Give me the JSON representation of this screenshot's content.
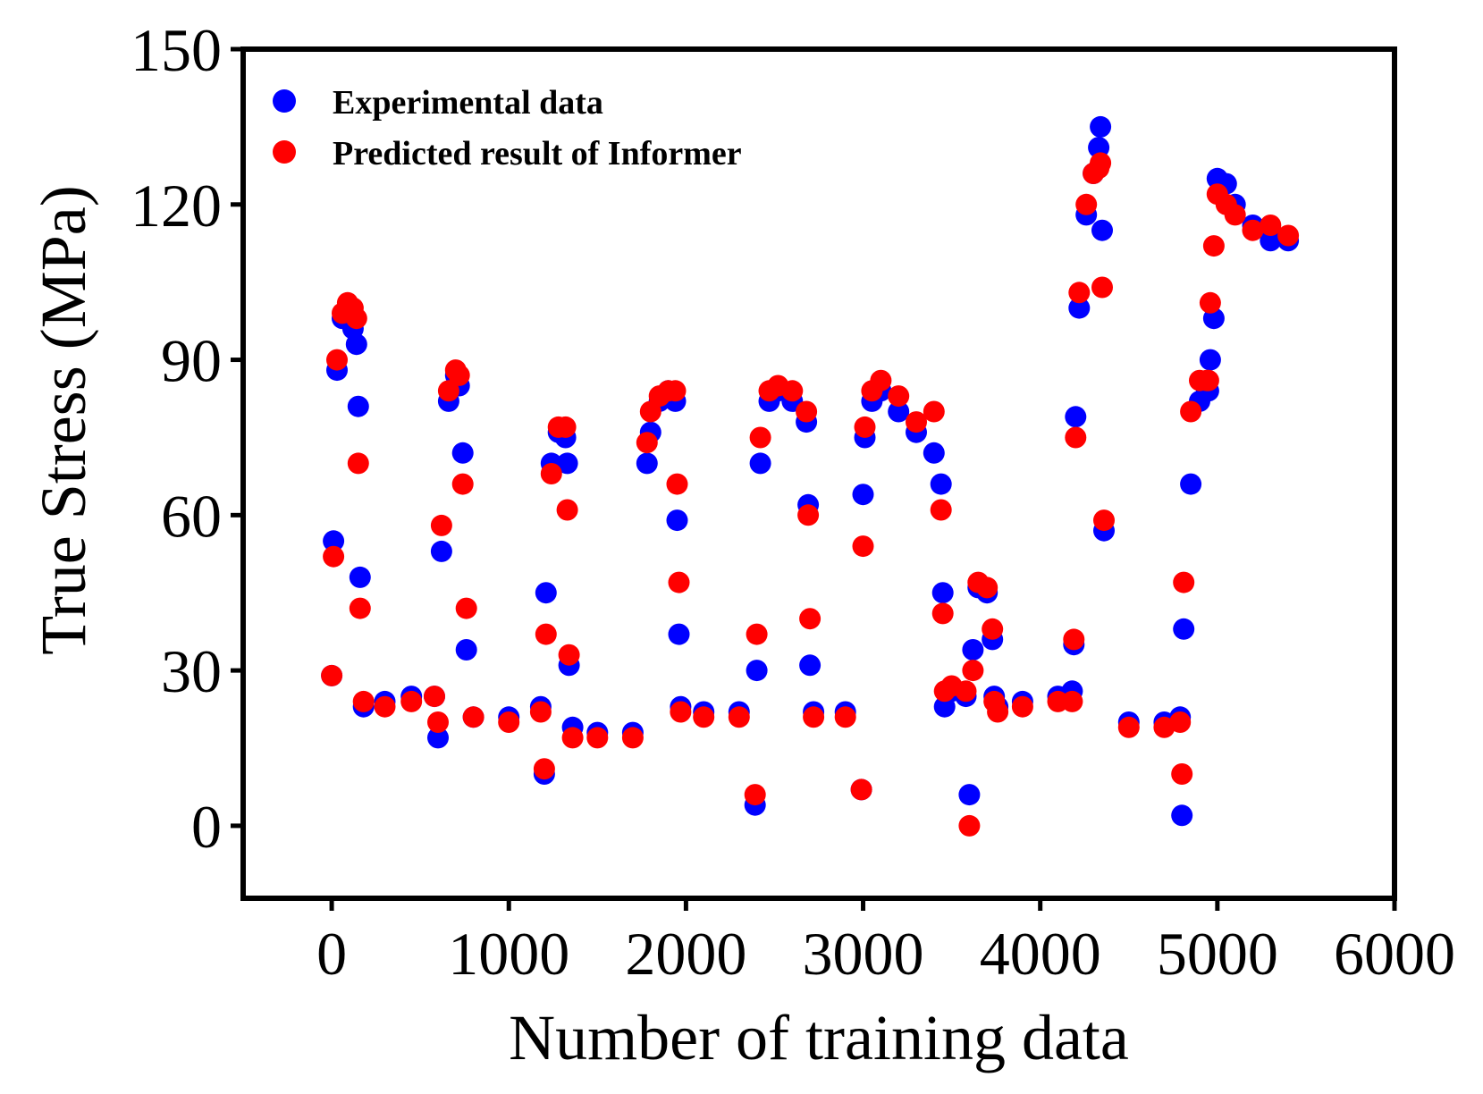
{
  "chart_data": {
    "type": "scatter",
    "title": "",
    "xlabel": "Number of training data",
    "ylabel": "True Stress (MPa)",
    "xlim": [
      -500,
      6000
    ],
    "ylim": [
      -14,
      150
    ],
    "xticks": [
      "0",
      "1000",
      "2000",
      "3000",
      "4000",
      "5000",
      "6000"
    ],
    "yticks": [
      "0",
      "30",
      "60",
      "90",
      "120",
      "150"
    ],
    "legend_position": "top-left",
    "colors": {
      "experimental": "#0000ff",
      "predicted": "#ff0000"
    },
    "series": [
      {
        "name": "Experimental data",
        "color": "#0000ff",
        "x": [
          0,
          10,
          30,
          60,
          90,
          120,
          140,
          150,
          160,
          180,
          300,
          450,
          580,
          600,
          620,
          660,
          700,
          720,
          740,
          760,
          800,
          1000,
          1180,
          1200,
          1210,
          1240,
          1280,
          1320,
          1330,
          1340,
          1360,
          1500,
          1700,
          1780,
          1800,
          1850,
          1900,
          1940,
          1950,
          1960,
          1970,
          2100,
          2300,
          2390,
          2400,
          2420,
          2470,
          2520,
          2600,
          2680,
          2690,
          2700,
          2720,
          2900,
          2990,
          3000,
          3010,
          3050,
          3100,
          3200,
          3300,
          3400,
          3440,
          3450,
          3460,
          3500,
          3580,
          3600,
          3620,
          3650,
          3700,
          3730,
          3740,
          3760,
          3900,
          4100,
          4180,
          4190,
          4200,
          4220,
          4260,
          4300,
          4330,
          4340,
          4350,
          4360,
          4500,
          4700,
          4790,
          4800,
          4810,
          4850,
          4900,
          4940,
          4950,
          4960,
          4980,
          5000,
          5050,
          5100,
          5200,
          5300,
          5400
        ],
        "y": [
          29,
          55,
          88,
          98,
          100,
          96,
          93,
          81,
          48,
          23,
          24,
          25,
          25,
          17,
          53,
          82,
          87,
          85,
          72,
          34,
          21,
          21,
          23,
          10,
          45,
          70,
          76,
          75,
          70,
          31,
          19,
          18,
          18,
          70,
          76,
          82,
          84,
          82,
          59,
          37,
          23,
          22,
          22,
          4,
          30,
          70,
          82,
          84,
          82,
          78,
          62,
          31,
          22,
          22,
          7,
          64,
          75,
          82,
          84,
          80,
          76,
          72,
          66,
          45,
          23,
          26,
          25,
          6,
          34,
          46,
          45,
          36,
          25,
          23,
          24,
          25,
          26,
          35,
          79,
          100,
          118,
          126,
          131,
          135,
          115,
          57,
          20,
          20,
          21,
          2,
          38,
          66,
          82,
          84,
          84,
          90,
          98,
          125,
          124,
          120,
          116,
          113,
          113
        ]
      },
      {
        "name": "Predicted result of Informer",
        "color": "#ff0000",
        "x": [
          0,
          10,
          30,
          60,
          90,
          120,
          140,
          150,
          160,
          180,
          300,
          450,
          580,
          600,
          620,
          660,
          700,
          720,
          740,
          760,
          800,
          1000,
          1180,
          1200,
          1210,
          1240,
          1280,
          1320,
          1330,
          1340,
          1360,
          1500,
          1700,
          1780,
          1800,
          1850,
          1900,
          1940,
          1950,
          1960,
          1970,
          2100,
          2300,
          2390,
          2400,
          2420,
          2470,
          2520,
          2600,
          2680,
          2690,
          2700,
          2720,
          2900,
          2990,
          3000,
          3010,
          3050,
          3100,
          3200,
          3300,
          3400,
          3440,
          3450,
          3460,
          3500,
          3580,
          3600,
          3620,
          3650,
          3700,
          3730,
          3740,
          3760,
          3900,
          4100,
          4180,
          4190,
          4200,
          4220,
          4260,
          4300,
          4330,
          4340,
          4350,
          4360,
          4500,
          4700,
          4790,
          4800,
          4810,
          4850,
          4900,
          4940,
          4950,
          4960,
          4980,
          5000,
          5050,
          5100,
          5200,
          5300,
          5400
        ],
        "y": [
          29,
          52,
          90,
          99,
          101,
          100,
          98,
          70,
          42,
          24,
          23,
          24,
          25,
          20,
          58,
          84,
          88,
          87,
          66,
          42,
          21,
          20,
          22,
          11,
          37,
          68,
          77,
          77,
          61,
          33,
          17,
          17,
          17,
          74,
          80,
          83,
          84,
          84,
          66,
          47,
          22,
          21,
          21,
          6,
          37,
          75,
          84,
          85,
          84,
          80,
          60,
          40,
          21,
          21,
          7,
          54,
          77,
          84,
          86,
          83,
          78,
          80,
          61,
          41,
          26,
          27,
          26,
          0,
          30,
          47,
          46,
          38,
          24,
          22,
          23,
          24,
          24,
          36,
          75,
          103,
          120,
          126,
          127,
          128,
          104,
          59,
          19,
          19,
          20,
          10,
          47,
          80,
          86,
          86,
          86,
          101,
          112,
          122,
          120,
          118,
          115,
          116,
          114
        ]
      }
    ]
  }
}
